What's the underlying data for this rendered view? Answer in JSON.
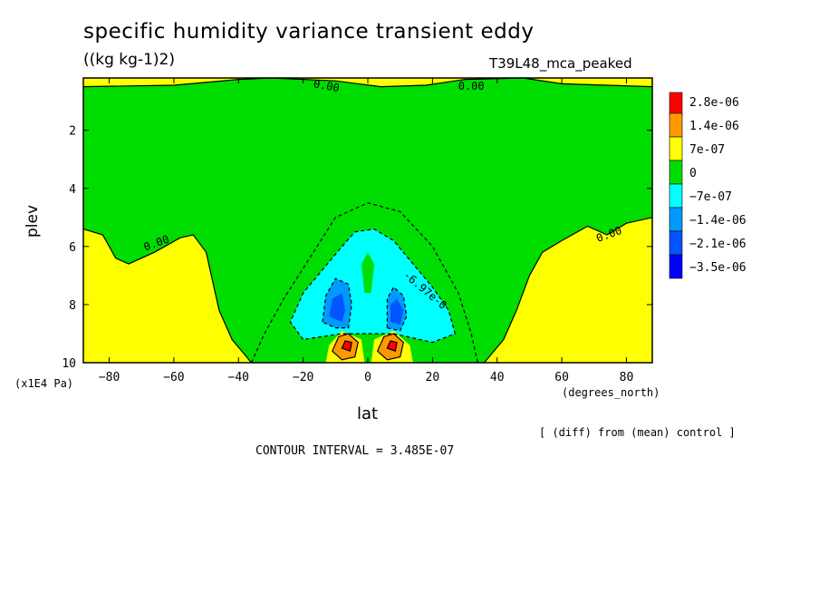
{
  "chart_data": {
    "type": "contour",
    "title": "specific humidity variance transient eddy",
    "units": "((kg kg-1)2)",
    "run_label": "T39L48_mca_peaked",
    "xlabel": "lat",
    "ylabel": "plev",
    "x_units": "(degrees_north)",
    "y_units": "(x1E4 Pa)",
    "xlim": [
      -88,
      88
    ],
    "ylim": [
      0.2,
      10
    ],
    "y_inverted": true,
    "x_ticks": [
      -80,
      -60,
      -40,
      -20,
      0,
      20,
      40,
      60,
      80
    ],
    "x_tick_labels": [
      "−80",
      "−60",
      "−40",
      "−20",
      "0",
      "20",
      "40",
      "60",
      "80"
    ],
    "y_ticks": [
      2,
      4,
      6,
      8,
      10
    ],
    "y_tick_labels": [
      "2",
      "4",
      "6",
      "8",
      "10"
    ],
    "note": "[ (diff) from (mean) control ]",
    "contour_interval": "CONTOUR INTERVAL = 3.485E-07",
    "contour_labels": [
      "0.00",
      "0.00",
      "0.00",
      "0.00",
      "-6.97e-0"
    ],
    "legend": [
      {
        "label": "2.8e-06",
        "color": "#ff0000"
      },
      {
        "label": "1.4e-06",
        "color": "#ff9900"
      },
      {
        "label": "7e-07",
        "color": "#ffff00"
      },
      {
        "label": "0",
        "color": "#00dd00"
      },
      {
        "label": "−7e-07",
        "color": "#00ffff"
      },
      {
        "label": "−1.4e-06",
        "color": "#0099ff"
      },
      {
        "label": "−2.1e-06",
        "color": "#0055ff"
      },
      {
        "label": "−3.5e-06",
        "color": "#0000ff"
      }
    ],
    "regions": [
      {
        "level": "7e-07",
        "lat": [
          -88,
          -40
        ],
        "plev": [
          5.4,
          10
        ]
      },
      {
        "level": "7e-07",
        "lat": [
          38,
          88
        ],
        "plev": [
          5.0,
          10
        ]
      },
      {
        "level": "7e-07",
        "lat": [
          -88,
          88
        ],
        "plev": [
          0.2,
          0.6
        ]
      },
      {
        "level": "0",
        "lat": [
          -40,
          38
        ],
        "plev": [
          0.6,
          10
        ]
      },
      {
        "level": "−7e-07",
        "lat": [
          -20,
          20
        ],
        "plev": [
          5.5,
          9.2
        ]
      },
      {
        "level": "−2.1e-06",
        "lat": [
          -13,
          -5
        ],
        "plev": [
          7.2,
          8.8
        ]
      },
      {
        "level": "−2.1e-06",
        "lat": [
          6,
          12
        ],
        "plev": [
          7.5,
          8.8
        ]
      },
      {
        "level": "2.8e-06",
        "lat": [
          -8,
          -4
        ],
        "plev": [
          9.1,
          9.7
        ]
      },
      {
        "level": "2.8e-06",
        "lat": [
          5,
          9
        ],
        "plev": [
          9.1,
          9.7
        ]
      }
    ]
  }
}
